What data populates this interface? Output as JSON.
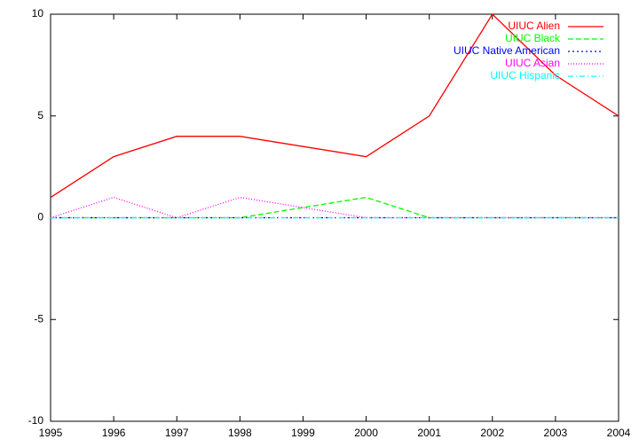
{
  "chart_data": {
    "type": "line",
    "x": [
      1995,
      1996,
      1997,
      1998,
      1999,
      2000,
      2001,
      2002,
      2003,
      2004
    ],
    "series": [
      {
        "name": "UIUC Alien",
        "color": "#ff0000",
        "values": [
          1,
          3,
          4,
          4,
          3.5,
          3,
          5,
          10,
          7,
          5
        ]
      },
      {
        "name": "UIUC Black",
        "color": "#00ff00",
        "values": [
          0,
          0,
          0,
          0,
          0.5,
          1,
          0,
          0,
          0,
          0
        ]
      },
      {
        "name": "UIUC Native American",
        "color": "#0000ff",
        "values": [
          0,
          0,
          0,
          0,
          0,
          0,
          0,
          0,
          0,
          0
        ]
      },
      {
        "name": "UIUC Asian",
        "color": "#ff00ff",
        "values": [
          0,
          1,
          0,
          1,
          0.5,
          0,
          0,
          0,
          0,
          0
        ]
      },
      {
        "name": "UIUC Hispanic",
        "color": "#00ffff",
        "values": [
          0,
          0,
          0,
          0,
          0,
          0,
          0,
          0,
          0,
          0
        ]
      }
    ],
    "xlim": [
      1995,
      2004
    ],
    "xticks": [
      1995,
      1996,
      1997,
      1998,
      1999,
      2000,
      2001,
      2002,
      2003,
      2004
    ],
    "ylim": [
      -10,
      10
    ],
    "yticks": [
      -10,
      -5,
      0,
      5,
      10
    ],
    "legend": "top-right"
  }
}
